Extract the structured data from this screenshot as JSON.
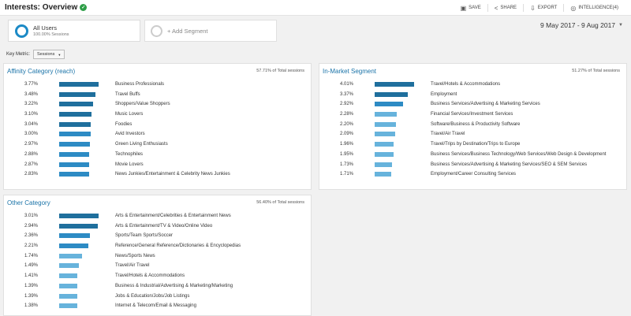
{
  "header": {
    "title": "Interests: Overview",
    "tools": [
      {
        "icon": "save-icon",
        "label": "SAVE"
      },
      {
        "icon": "share-icon",
        "label": "SHARE"
      },
      {
        "icon": "export-icon",
        "label": "EXPORT"
      },
      {
        "icon": "intelligence-icon",
        "label": "INTELLIGENCE(4)"
      }
    ]
  },
  "segments": {
    "active_name": "All Users",
    "active_sub": "100.00% Sessions",
    "add_label": "+ Add Segment"
  },
  "date_range": "9 May 2017 - 9 Aug 2017",
  "key_metric": {
    "label": "Key Metric:",
    "value": "Sessions"
  },
  "colors": {
    "dark_bar": "#1f6f9d",
    "mid_bar": "#2d8bc4",
    "light_bar": "#67b3dc",
    "link": "#1a73a8"
  },
  "panels": {
    "affinity": {
      "title": "Affinity Category (reach)",
      "total": "57.71% of Total sessions",
      "rows": [
        {
          "pct": "3.77%",
          "label": "Business Professionals",
          "value": 3.77
        },
        {
          "pct": "3.48%",
          "label": "Travel Buffs",
          "value": 3.48
        },
        {
          "pct": "3.22%",
          "label": "Shoppers/Value Shoppers",
          "value": 3.22
        },
        {
          "pct": "3.10%",
          "label": "Music Lovers",
          "value": 3.1
        },
        {
          "pct": "3.04%",
          "label": "Foodies",
          "value": 3.04
        },
        {
          "pct": "3.00%",
          "label": "Avid Investors",
          "value": 3.0
        },
        {
          "pct": "2.97%",
          "label": "Green Living Enthusiasts",
          "value": 2.97
        },
        {
          "pct": "2.88%",
          "label": "Technophiles",
          "value": 2.88
        },
        {
          "pct": "2.87%",
          "label": "Movie Lovers",
          "value": 2.87
        },
        {
          "pct": "2.83%",
          "label": "News Junkies/Entertainment & Celebrity News Junkies",
          "value": 2.83
        }
      ]
    },
    "inmarket": {
      "title": "In-Market Segment",
      "total": "51.27% of Total sessions",
      "rows": [
        {
          "pct": "4.01%",
          "label": "Travel/Hotels & Accommodations",
          "value": 4.01
        },
        {
          "pct": "3.37%",
          "label": "Employment",
          "value": 3.37
        },
        {
          "pct": "2.92%",
          "label": "Business Services/Advertising & Marketing Services",
          "value": 2.92
        },
        {
          "pct": "2.28%",
          "label": "Financial Services/Investment Services",
          "value": 2.28
        },
        {
          "pct": "2.20%",
          "label": "Software/Business & Productivity Software",
          "value": 2.2
        },
        {
          "pct": "2.09%",
          "label": "Travel/Air Travel",
          "value": 2.09
        },
        {
          "pct": "1.96%",
          "label": "Travel/Trips by Destination/Trips to Europe",
          "value": 1.96
        },
        {
          "pct": "1.95%",
          "label": "Business Services/Business Technology/Web Services/Web Design & Development",
          "value": 1.95
        },
        {
          "pct": "1.73%",
          "label": "Business Services/Advertising & Marketing Services/SEO & SEM Services",
          "value": 1.73
        },
        {
          "pct": "1.71%",
          "label": "Employment/Career Consulting Services",
          "value": 1.71
        }
      ]
    },
    "other": {
      "title": "Other Category",
      "total": "56.40% of Total sessions",
      "rows": [
        {
          "pct": "3.01%",
          "label": "Arts & Entertainment/Celebrities & Entertainment News",
          "value": 3.01
        },
        {
          "pct": "2.94%",
          "label": "Arts & Entertainment/TV & Video/Online Video",
          "value": 2.94
        },
        {
          "pct": "2.36%",
          "label": "Sports/Team Sports/Soccer",
          "value": 2.36
        },
        {
          "pct": "2.21%",
          "label": "Reference/General Reference/Dictionaries & Encyclopedias",
          "value": 2.21
        },
        {
          "pct": "1.74%",
          "label": "News/Sports News",
          "value": 1.74
        },
        {
          "pct": "1.49%",
          "label": "Travel/Air Travel",
          "value": 1.49
        },
        {
          "pct": "1.41%",
          "label": "Travel/Hotels & Accommodations",
          "value": 1.41
        },
        {
          "pct": "1.39%",
          "label": "Business & Industrial/Advertising & Marketing/Marketing",
          "value": 1.39
        },
        {
          "pct": "1.39%",
          "label": "Jobs & Education/Jobs/Job Listings",
          "value": 1.39
        },
        {
          "pct": "1.38%",
          "label": "Internet & Telecom/Email & Messaging",
          "value": 1.38
        }
      ]
    }
  }
}
